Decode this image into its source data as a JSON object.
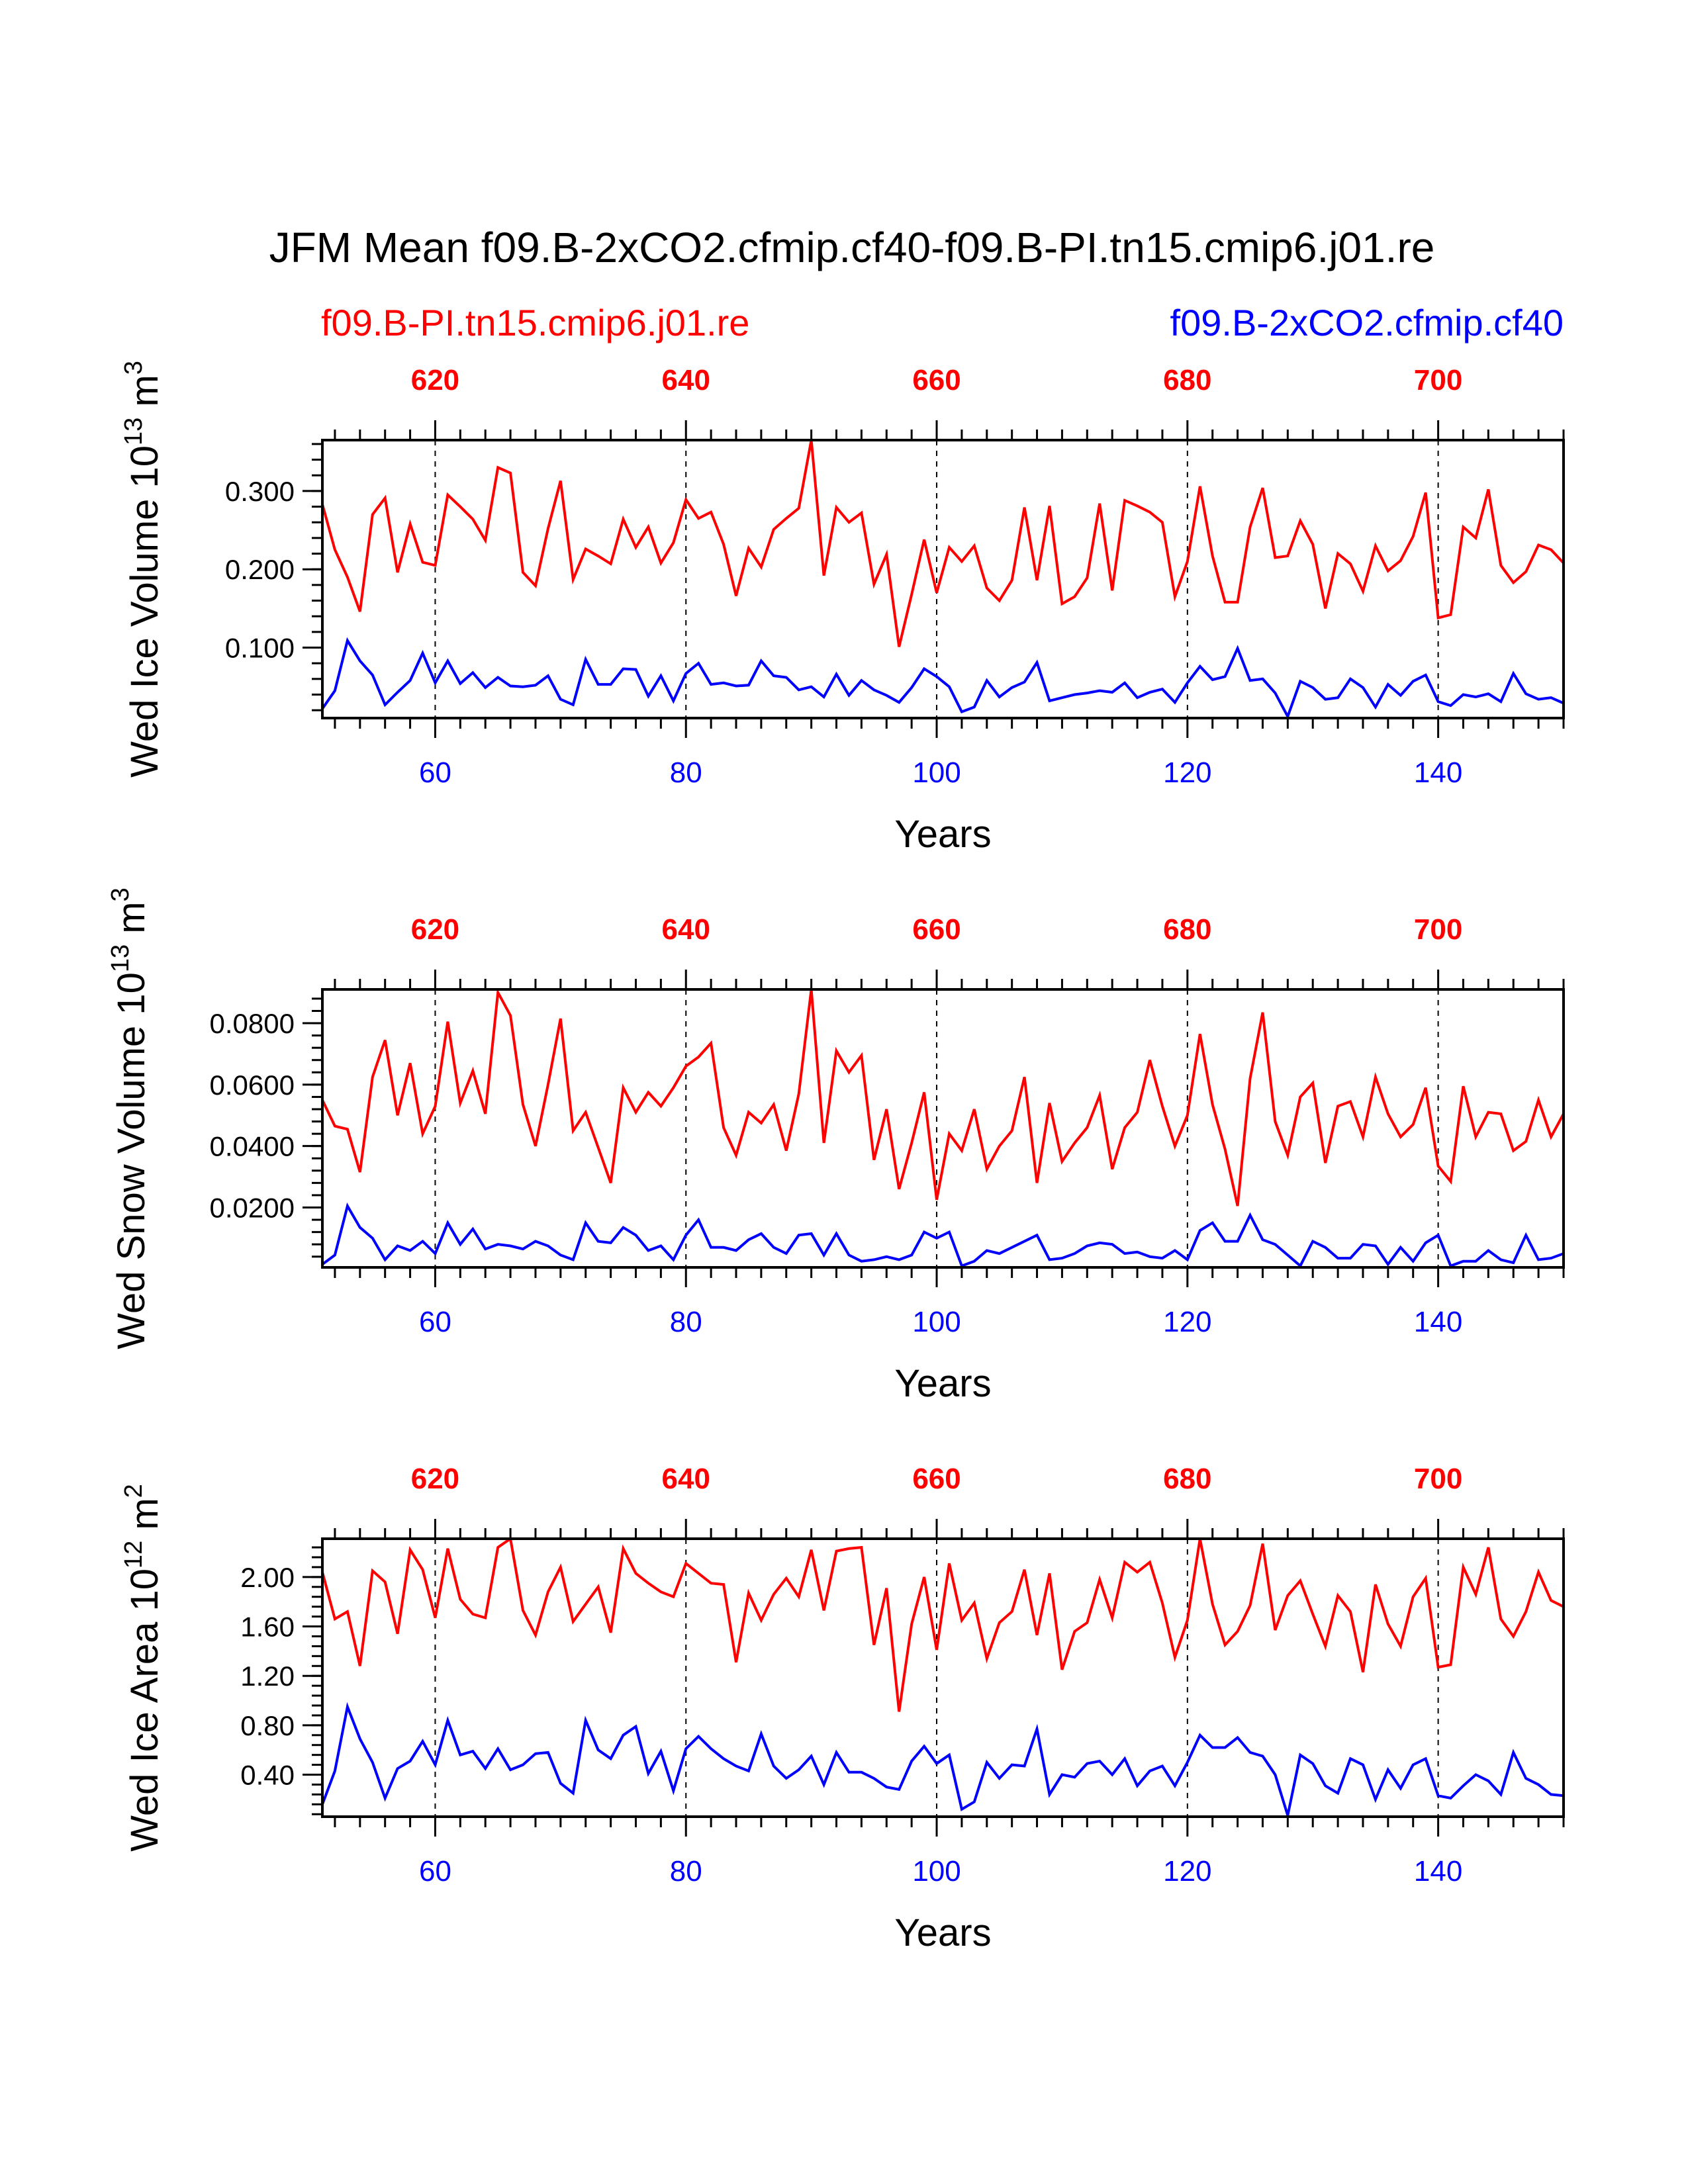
{
  "title": "JFM Mean f09.B-2xCO2.cfmip.cf40-f09.B-PI.tn15.cmip6.j01.re",
  "legend": {
    "left_label": "f09.B-PI.tn15.cmip6.j01.re",
    "right_label": "f09.B-2xCO2.cfmip.cf40"
  },
  "colors": {
    "series_pi": "#ff0000",
    "series_co2": "#0000ff",
    "axis": "#000000"
  },
  "chart_data": [
    {
      "type": "line",
      "ylabel_main": "Wed Ice Volume 10",
      "ylabel_exp": "13",
      "ylabel_unit": " m",
      "ylabel_unit_exp": "3",
      "xlabel": "Years",
      "xlim": [
        51,
        150
      ],
      "ylim": [
        0.01,
        0.365
      ],
      "yticks": [
        0.1,
        0.2,
        0.3
      ],
      "ytick_labels": [
        "0.100",
        "0.200",
        "0.300"
      ],
      "xticks_bottom": [
        60,
        80,
        100,
        120,
        140
      ],
      "xtick_labels_bottom": [
        "60",
        "80",
        "100",
        "120",
        "140"
      ],
      "xticks_top": [
        620,
        640,
        660,
        680,
        700
      ],
      "xtick_labels_top": [
        "620",
        "640",
        "660",
        "680",
        "700"
      ],
      "x": [
        51,
        52,
        53,
        54,
        55,
        56,
        57,
        58,
        59,
        60,
        61,
        62,
        63,
        64,
        65,
        66,
        67,
        68,
        69,
        70,
        71,
        72,
        73,
        74,
        75,
        76,
        77,
        78,
        79,
        80,
        81,
        82,
        83,
        84,
        85,
        86,
        87,
        88,
        89,
        90,
        91,
        92,
        93,
        94,
        95,
        96,
        97,
        98,
        99,
        100,
        101,
        102,
        103,
        104,
        105,
        106,
        107,
        108,
        109,
        110,
        111,
        112,
        113,
        114,
        115,
        116,
        117,
        118,
        119,
        120,
        121,
        122,
        123,
        124,
        125,
        126,
        127,
        128,
        129,
        130,
        131,
        132,
        133,
        134,
        135,
        136,
        137,
        138,
        139,
        140,
        141,
        142,
        143,
        144,
        145,
        146,
        147,
        148,
        149,
        150
      ],
      "series": [
        {
          "name": "f09.B-PI.tn15.cmip6.j01.re",
          "values": [
            0.283,
            0.225,
            0.19,
            0.146,
            0.27,
            0.291,
            0.196,
            0.258,
            0.209,
            0.205,
            0.295,
            0.28,
            0.264,
            0.237,
            0.33,
            0.323,
            0.196,
            0.179,
            0.252,
            0.313,
            0.187,
            0.226,
            0.217,
            0.207,
            0.264,
            0.228,
            0.254,
            0.208,
            0.234,
            0.289,
            0.265,
            0.273,
            0.232,
            0.166,
            0.227,
            0.203,
            0.251,
            0.265,
            0.278,
            0.365,
            0.192,
            0.279,
            0.26,
            0.272,
            0.181,
            0.219,
            0.101,
            0.168,
            0.238,
            0.17,
            0.228,
            0.21,
            0.23,
            0.176,
            0.16,
            0.186,
            0.279,
            0.186,
            0.281,
            0.156,
            0.165,
            0.189,
            0.284,
            0.173,
            0.288,
            0.281,
            0.273,
            0.26,
            0.165,
            0.21,
            0.306,
            0.217,
            0.158,
            0.158,
            0.254,
            0.304,
            0.215,
            0.217,
            0.262,
            0.232,
            0.15,
            0.22,
            0.207,
            0.172,
            0.23,
            0.198,
            0.211,
            0.242,
            0.298,
            0.138,
            0.142,
            0.254,
            0.24,
            0.302,
            0.205,
            0.183,
            0.197,
            0.231,
            0.225,
            0.208
          ]
        },
        {
          "name": "f09.B-2xCO2.cfmip.cf40",
          "values": [
            0.022,
            0.045,
            0.109,
            0.083,
            0.065,
            0.027,
            0.043,
            0.058,
            0.093,
            0.055,
            0.083,
            0.054,
            0.068,
            0.049,
            0.062,
            0.051,
            0.05,
            0.052,
            0.064,
            0.034,
            0.027,
            0.085,
            0.053,
            0.053,
            0.073,
            0.072,
            0.038,
            0.064,
            0.032,
            0.067,
            0.08,
            0.053,
            0.055,
            0.051,
            0.052,
            0.083,
            0.064,
            0.062,
            0.046,
            0.05,
            0.037,
            0.066,
            0.039,
            0.058,
            0.046,
            0.039,
            0.03,
            0.049,
            0.073,
            0.063,
            0.05,
            0.018,
            0.024,
            0.058,
            0.037,
            0.049,
            0.056,
            0.081,
            0.032,
            0.036,
            0.04,
            0.042,
            0.045,
            0.043,
            0.055,
            0.036,
            0.043,
            0.047,
            0.03,
            0.055,
            0.076,
            0.059,
            0.063,
            0.099,
            0.058,
            0.06,
            0.042,
            0.012,
            0.057,
            0.049,
            0.034,
            0.036,
            0.06,
            0.049,
            0.024,
            0.053,
            0.039,
            0.057,
            0.065,
            0.031,
            0.026,
            0.04,
            0.037,
            0.041,
            0.031,
            0.067,
            0.041,
            0.034,
            0.036,
            0.029
          ]
        }
      ]
    },
    {
      "type": "line",
      "ylabel_main": "Wed Snow Volume 10",
      "ylabel_exp": "13",
      "ylabel_unit": " m",
      "ylabel_unit_exp": "3",
      "xlabel": "Years",
      "xlim": [
        51,
        150
      ],
      "ylim": [
        0.0005,
        0.091
      ],
      "yticks": [
        0.02,
        0.04,
        0.06,
        0.08
      ],
      "ytick_labels": [
        "0.0200",
        "0.0400",
        "0.0600",
        "0.0800"
      ],
      "xticks_bottom": [
        60,
        80,
        100,
        120,
        140
      ],
      "xtick_labels_bottom": [
        "60",
        "80",
        "100",
        "120",
        "140"
      ],
      "xticks_top": [
        620,
        640,
        660,
        680,
        700
      ],
      "xtick_labels_top": [
        "620",
        "640",
        "660",
        "680",
        "700"
      ],
      "x": [
        51,
        52,
        53,
        54,
        55,
        56,
        57,
        58,
        59,
        60,
        61,
        62,
        63,
        64,
        65,
        66,
        67,
        68,
        69,
        70,
        71,
        72,
        73,
        74,
        75,
        76,
        77,
        78,
        79,
        80,
        81,
        82,
        83,
        84,
        85,
        86,
        87,
        88,
        89,
        90,
        91,
        92,
        93,
        94,
        95,
        96,
        97,
        98,
        99,
        100,
        101,
        102,
        103,
        104,
        105,
        106,
        107,
        108,
        109,
        110,
        111,
        112,
        113,
        114,
        115,
        116,
        117,
        118,
        119,
        120,
        121,
        122,
        123,
        124,
        125,
        126,
        127,
        128,
        129,
        130,
        131,
        132,
        133,
        134,
        135,
        136,
        137,
        138,
        139,
        140,
        141,
        142,
        143,
        144,
        145,
        146,
        147,
        148,
        149,
        150
      ],
      "series": [
        {
          "name": "f09.B-PI.tn15.cmip6.j01.re",
          "values": [
            0.055,
            0.0465,
            0.0455,
            0.0315,
            0.0625,
            0.0745,
            0.05,
            0.067,
            0.044,
            0.053,
            0.0805,
            0.054,
            0.0645,
            0.0505,
            0.09,
            0.0825,
            0.0535,
            0.04,
            0.06,
            0.0815,
            0.045,
            0.051,
            0.0395,
            0.028,
            0.059,
            0.051,
            0.0575,
            0.053,
            0.059,
            0.066,
            0.069,
            0.0735,
            0.046,
            0.037,
            0.051,
            0.0475,
            0.0535,
            0.0385,
            0.057,
            0.091,
            0.041,
            0.071,
            0.064,
            0.0695,
            0.0355,
            0.052,
            0.026,
            0.041,
            0.0575,
            0.0225,
            0.044,
            0.0385,
            0.052,
            0.0325,
            0.04,
            0.045,
            0.0625,
            0.028,
            0.054,
            0.035,
            0.041,
            0.046,
            0.0565,
            0.0325,
            0.046,
            0.051,
            0.068,
            0.053,
            0.04,
            0.05,
            0.0765,
            0.0535,
            0.039,
            0.0205,
            0.062,
            0.0835,
            0.048,
            0.037,
            0.056,
            0.0605,
            0.0345,
            0.053,
            0.0545,
            0.043,
            0.0625,
            0.0505,
            0.043,
            0.047,
            0.059,
            0.0335,
            0.0285,
            0.0595,
            0.043,
            0.051,
            0.0505,
            0.0385,
            0.0415,
            0.055,
            0.043,
            0.0505
          ]
        },
        {
          "name": "f09.B-2xCO2.cfmip.cf40",
          "values": [
            0.0015,
            0.0045,
            0.0205,
            0.0135,
            0.01,
            0.003,
            0.0075,
            0.006,
            0.009,
            0.005,
            0.015,
            0.008,
            0.013,
            0.0065,
            0.008,
            0.0075,
            0.0065,
            0.009,
            0.0075,
            0.0045,
            0.003,
            0.015,
            0.009,
            0.0085,
            0.0135,
            0.011,
            0.006,
            0.0075,
            0.003,
            0.011,
            0.016,
            0.007,
            0.007,
            0.006,
            0.0095,
            0.0115,
            0.007,
            0.005,
            0.011,
            0.0115,
            0.0045,
            0.0115,
            0.0045,
            0.0025,
            0.003,
            0.004,
            0.003,
            0.0045,
            0.012,
            0.01,
            0.012,
            0.001,
            0.0025,
            0.006,
            0.005,
            0.007,
            0.009,
            0.011,
            0.003,
            0.0035,
            0.005,
            0.0075,
            0.0085,
            0.008,
            0.005,
            0.0055,
            0.004,
            0.0035,
            0.006,
            0.003,
            0.0125,
            0.015,
            0.009,
            0.009,
            0.0175,
            0.0095,
            0.008,
            0.0045,
            0.001,
            0.009,
            0.007,
            0.0035,
            0.0035,
            0.008,
            0.0075,
            0.0015,
            0.007,
            0.0025,
            0.0085,
            0.011,
            0.001,
            0.0025,
            0.0025,
            0.006,
            0.003,
            0.002,
            0.011,
            0.003,
            0.0035,
            0.005
          ]
        }
      ]
    },
    {
      "type": "line",
      "ylabel_main": "Wed Ice Area 10",
      "ylabel_exp": "12",
      "ylabel_unit": " m",
      "ylabel_unit_exp": "2",
      "xlabel": "Years",
      "xlim": [
        51,
        150
      ],
      "ylim": [
        0.06,
        2.31
      ],
      "yticks": [
        0.4,
        0.8,
        1.2,
        1.6,
        2.0
      ],
      "ytick_labels": [
        "0.40",
        "0.80",
        "1.20",
        "1.60",
        "2.00"
      ],
      "xticks_bottom": [
        60,
        80,
        100,
        120,
        140
      ],
      "xtick_labels_bottom": [
        "60",
        "80",
        "100",
        "120",
        "140"
      ],
      "xticks_top": [
        620,
        640,
        660,
        680,
        700
      ],
      "xtick_labels_top": [
        "620",
        "640",
        "660",
        "680",
        "700"
      ],
      "x": [
        51,
        52,
        53,
        54,
        55,
        56,
        57,
        58,
        59,
        60,
        61,
        62,
        63,
        64,
        65,
        66,
        67,
        68,
        69,
        70,
        71,
        72,
        73,
        74,
        75,
        76,
        77,
        78,
        79,
        80,
        81,
        82,
        83,
        84,
        85,
        86,
        87,
        88,
        89,
        90,
        91,
        92,
        93,
        94,
        95,
        96,
        97,
        98,
        99,
        100,
        101,
        102,
        103,
        104,
        105,
        106,
        107,
        108,
        109,
        110,
        111,
        112,
        113,
        114,
        115,
        116,
        117,
        118,
        119,
        120,
        121,
        122,
        123,
        124,
        125,
        126,
        127,
        128,
        129,
        130,
        131,
        132,
        133,
        134,
        135,
        136,
        137,
        138,
        139,
        140,
        141,
        142,
        143,
        144,
        145,
        146,
        147,
        148,
        149,
        150
      ],
      "series": [
        {
          "name": "f09.B-PI.tn15.cmip6.j01.re",
          "values": [
            2.04,
            1.66,
            1.72,
            1.28,
            2.05,
            1.96,
            1.54,
            2.22,
            2.06,
            1.67,
            2.23,
            1.82,
            1.7,
            1.67,
            2.24,
            2.31,
            1.73,
            1.53,
            1.88,
            2.08,
            1.64,
            1.78,
            1.92,
            1.55,
            2.23,
            2.03,
            1.95,
            1.88,
            1.84,
            2.11,
            2.03,
            1.95,
            1.94,
            1.31,
            1.87,
            1.65,
            1.86,
            1.99,
            1.84,
            2.22,
            1.73,
            2.21,
            2.23,
            2.24,
            1.45,
            1.91,
            0.91,
            1.62,
            2.0,
            1.41,
            2.11,
            1.65,
            1.79,
            1.34,
            1.63,
            1.72,
            2.06,
            1.53,
            2.03,
            1.25,
            1.56,
            1.63,
            1.98,
            1.67,
            2.12,
            2.04,
            2.12,
            1.79,
            1.35,
            1.65,
            2.31,
            1.78,
            1.45,
            1.56,
            1.77,
            2.27,
            1.57,
            1.85,
            1.97,
            1.7,
            1.44,
            1.85,
            1.72,
            1.23,
            1.94,
            1.62,
            1.44,
            1.84,
            1.99,
            1.27,
            1.29,
            2.08,
            1.86,
            2.24,
            1.66,
            1.52,
            1.72,
            2.04,
            1.81,
            1.76
          ]
        },
        {
          "name": "f09.B-2xCO2.cfmip.cf40",
          "values": [
            0.16,
            0.43,
            0.95,
            0.69,
            0.5,
            0.21,
            0.45,
            0.51,
            0.67,
            0.48,
            0.84,
            0.56,
            0.59,
            0.45,
            0.61,
            0.44,
            0.48,
            0.57,
            0.58,
            0.33,
            0.25,
            0.84,
            0.6,
            0.53,
            0.72,
            0.79,
            0.41,
            0.59,
            0.27,
            0.61,
            0.71,
            0.61,
            0.53,
            0.47,
            0.43,
            0.73,
            0.47,
            0.37,
            0.44,
            0.55,
            0.32,
            0.58,
            0.42,
            0.42,
            0.37,
            0.3,
            0.28,
            0.51,
            0.63,
            0.49,
            0.56,
            0.12,
            0.18,
            0.5,
            0.37,
            0.48,
            0.47,
            0.77,
            0.24,
            0.4,
            0.38,
            0.49,
            0.51,
            0.4,
            0.53,
            0.31,
            0.43,
            0.47,
            0.31,
            0.5,
            0.72,
            0.62,
            0.62,
            0.7,
            0.58,
            0.55,
            0.4,
            0.07,
            0.56,
            0.49,
            0.31,
            0.25,
            0.53,
            0.48,
            0.2,
            0.44,
            0.29,
            0.48,
            0.53,
            0.23,
            0.21,
            0.31,
            0.4,
            0.35,
            0.24,
            0.58,
            0.37,
            0.32,
            0.24,
            0.23
          ]
        }
      ]
    }
  ]
}
